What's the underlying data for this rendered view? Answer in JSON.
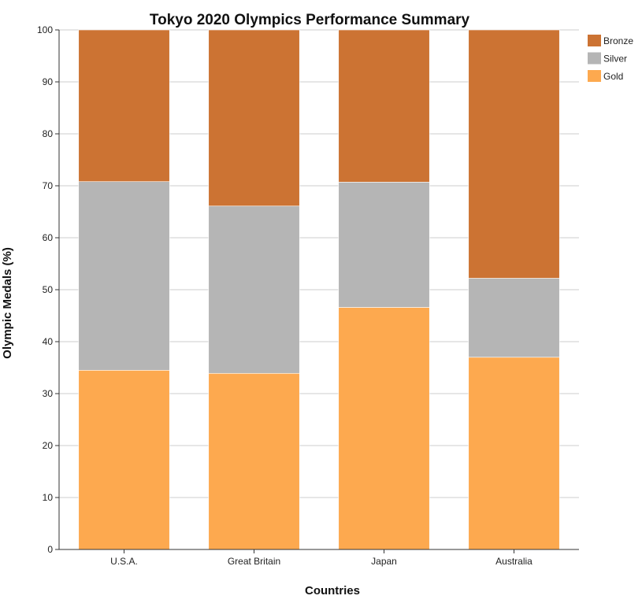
{
  "chart_data": {
    "type": "bar",
    "stacked": true,
    "title": "Tokyo 2020 Olympics Performance Summary",
    "xlabel": "Countries",
    "ylabel": "Olympic Medals (%)",
    "ylim": [
      0,
      100
    ],
    "yticks": [
      0,
      10,
      20,
      30,
      40,
      50,
      60,
      70,
      80,
      90,
      100
    ],
    "grid": true,
    "legend_position": "top-right",
    "categories": [
      "U.S.A.",
      "Great Britain",
      "Japan",
      "Australia"
    ],
    "series": [
      {
        "name": "Gold",
        "color": "#fda94f",
        "values": [
          34.5,
          33.9,
          46.6,
          37.0
        ]
      },
      {
        "name": "Silver",
        "color": "#b5b5b5",
        "values": [
          36.3,
          32.2,
          24.1,
          15.2
        ]
      },
      {
        "name": "Bronze",
        "color": "#cc7333",
        "values": [
          29.2,
          33.9,
          29.3,
          47.8
        ]
      }
    ],
    "legend_order": [
      "Bronze",
      "Silver",
      "Gold"
    ]
  }
}
